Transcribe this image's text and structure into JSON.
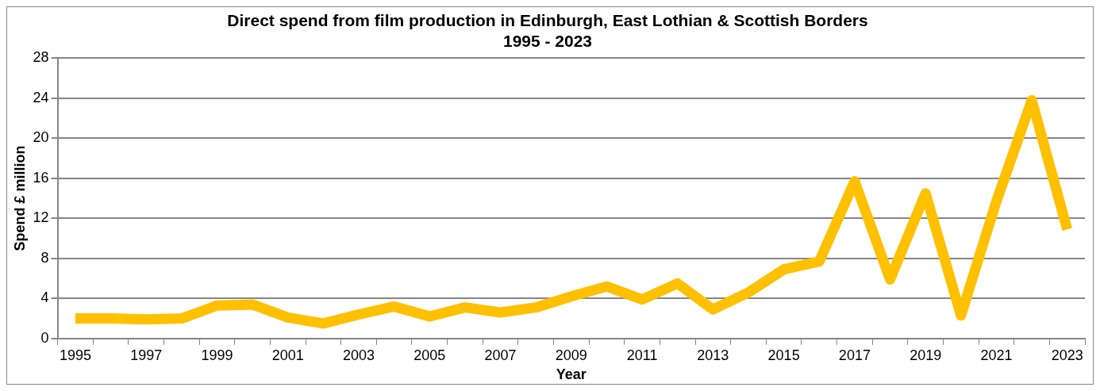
{
  "chart_data": {
    "type": "line",
    "title": "Direct spend from film production in Edinburgh, East Lothian & Scottish Borders\n1995 - 2023",
    "xlabel": "Year",
    "ylabel": "Spend £ million",
    "categories": [
      "1995",
      null,
      "1997",
      null,
      "1999",
      null,
      "2001",
      null,
      "2003",
      null,
      "2005",
      null,
      "2007",
      null,
      "2009",
      null,
      "2011",
      null,
      "2013",
      null,
      "2015",
      null,
      "2017",
      null,
      "2019",
      null,
      "2021",
      null,
      "2023"
    ],
    "series": [
      {
        "color": "#ffc000",
        "values": [
          2.0,
          2.0,
          1.9,
          2.0,
          3.3,
          3.4,
          2.1,
          1.5,
          2.4,
          3.2,
          2.2,
          3.1,
          2.6,
          3.1,
          4.2,
          5.2,
          3.9,
          5.5,
          2.9,
          4.6,
          6.9,
          7.7,
          15.7,
          5.9,
          14.5,
          2.3,
          13.7,
          23.8,
          10.9
        ]
      }
    ],
    "ylim": [
      0,
      28
    ],
    "yticks": [
      0,
      4,
      8,
      12,
      16,
      20,
      24,
      28
    ],
    "grid": "y",
    "legend": false,
    "marker": "none",
    "line_style": "solid"
  }
}
